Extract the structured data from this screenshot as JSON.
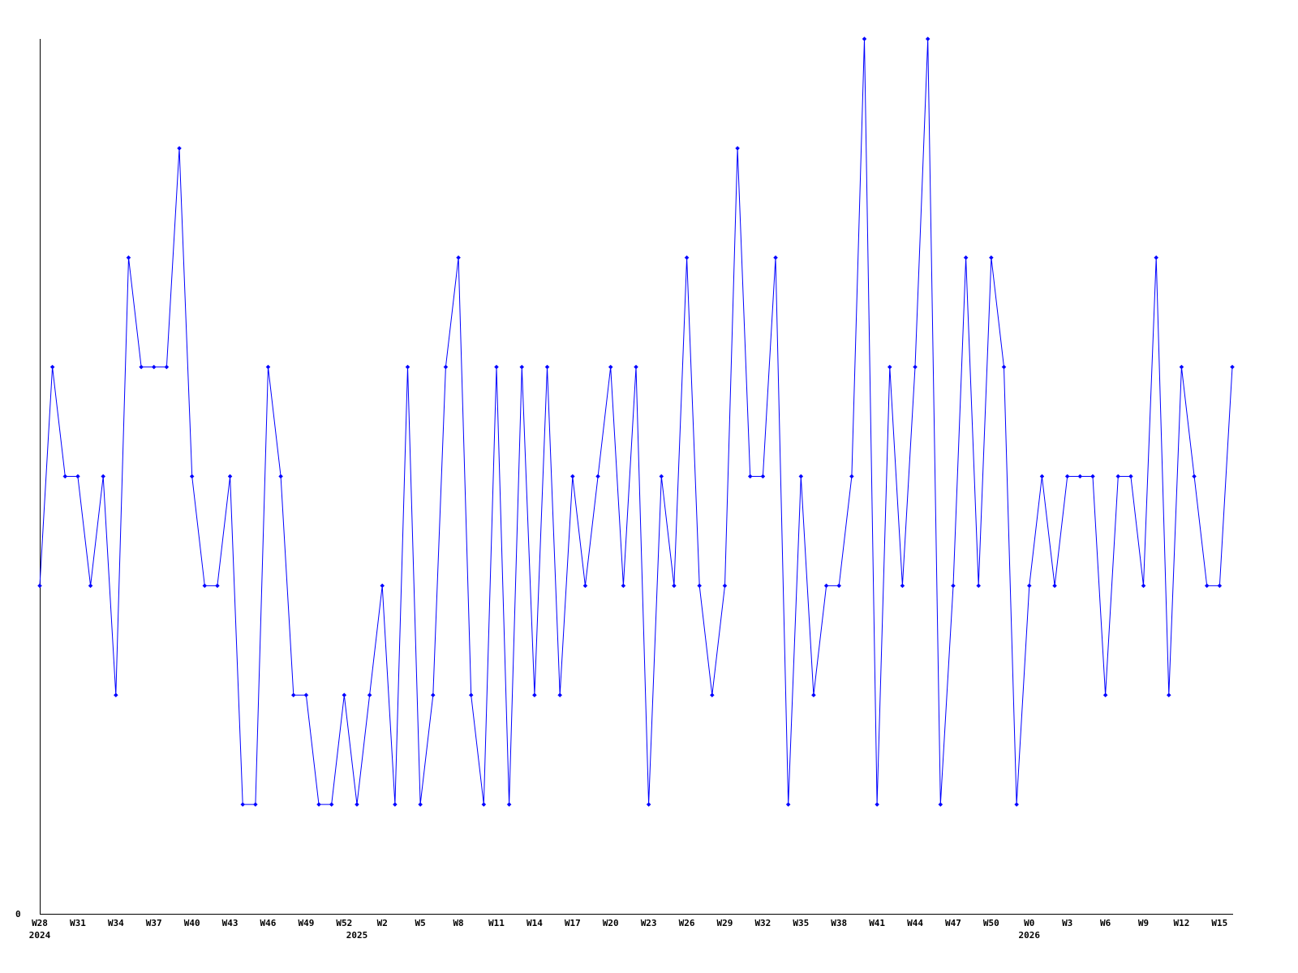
{
  "chart_data": {
    "type": "line",
    "title": "",
    "xlabel": "",
    "ylabel": "",
    "ylim": [
      0,
      8
    ],
    "y_tick_labels": [
      "0"
    ],
    "grid": false,
    "legend": "none",
    "line_color": "#0000ff",
    "axis_color": "#000000",
    "x_start": {
      "year": 2024,
      "week": 28
    },
    "week_range_per_year": {
      "first": 0,
      "last": 52
    },
    "x_tick_every": 3,
    "x_tick_labels": [
      "W28",
      "W31",
      "W34",
      "W37",
      "W40",
      "W43",
      "W46",
      "W49",
      "W52",
      "W2",
      "W5",
      "W8",
      "W11",
      "W14",
      "W17",
      "W20",
      "W23",
      "W26",
      "W29",
      "W32",
      "W35",
      "W38",
      "W41",
      "W44",
      "W47",
      "W50",
      "W0",
      "W3",
      "W6",
      "W9",
      "W12",
      "W15"
    ],
    "year_labels": [
      "2024",
      "2025",
      "2026"
    ],
    "values": [
      3,
      5,
      4,
      4,
      3,
      4,
      2,
      6,
      5,
      5,
      5,
      7,
      4,
      3,
      3,
      4,
      1,
      1,
      5,
      4,
      2,
      2,
      1,
      1,
      2,
      1,
      2,
      3,
      1,
      5,
      1,
      2,
      5,
      6,
      2,
      1,
      5,
      1,
      5,
      2,
      5,
      2,
      4,
      3,
      4,
      5,
      3,
      5,
      1,
      4,
      3,
      6,
      3,
      2,
      3,
      7,
      4,
      4,
      6,
      1,
      4,
      2,
      3,
      3,
      4,
      8,
      1,
      5,
      3,
      5,
      8,
      1,
      3,
      6,
      3,
      6,
      5,
      1,
      3,
      4,
      3,
      4,
      4,
      4,
      2,
      4,
      4,
      3,
      6,
      2,
      5,
      4,
      3,
      3,
      5
    ]
  }
}
